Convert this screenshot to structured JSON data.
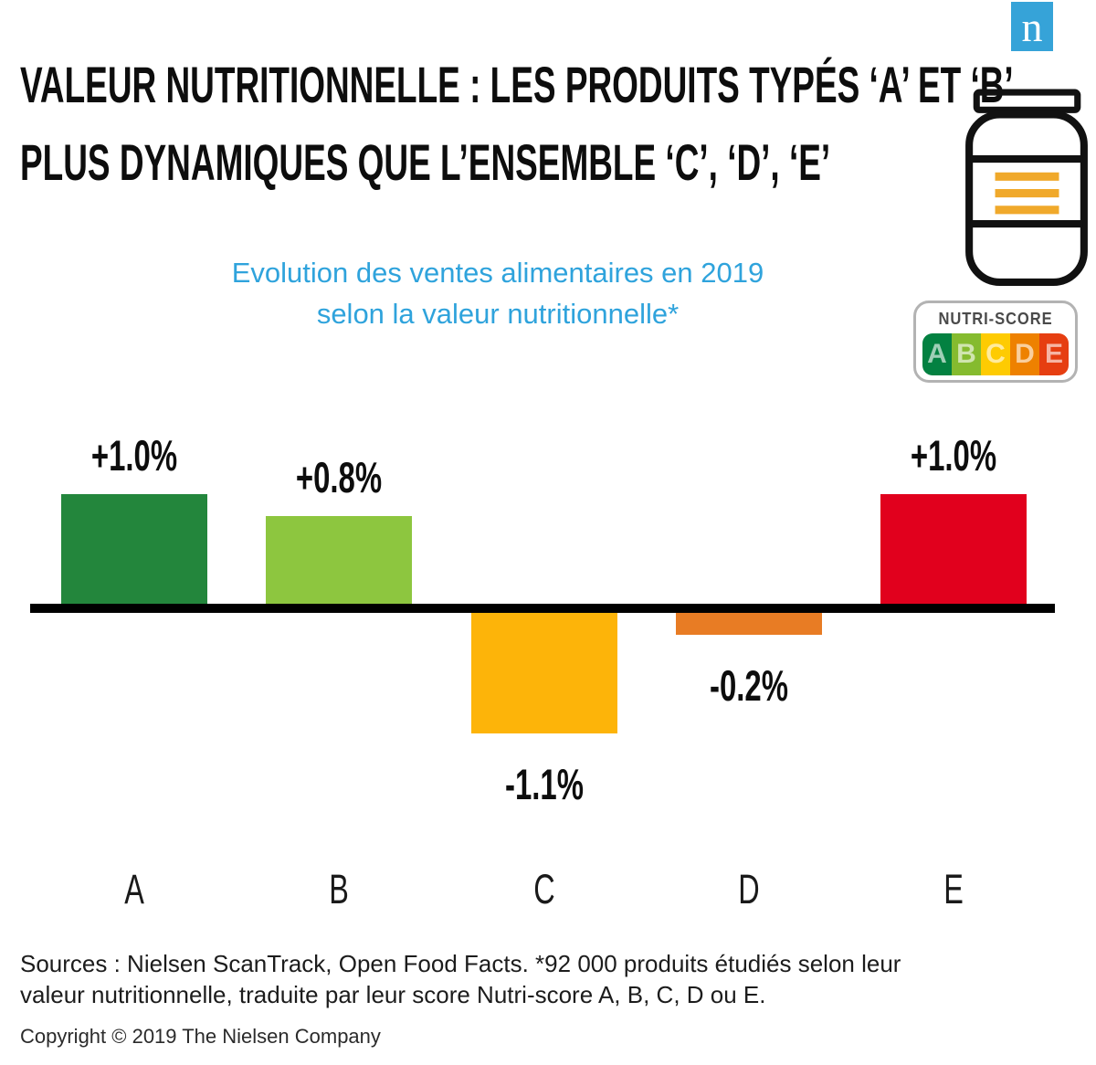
{
  "header": {
    "title_line1": "VALEUR NUTRITIONNELLE : LES PRODUITS TYPÉS ‘A’ ET ‘B’",
    "title_line2": "PLUS DYNAMIQUES QUE L’ENSEMBLE ‘C’, ‘D’, ‘E’"
  },
  "logo": {
    "letter": "n",
    "color": "#36a3d8"
  },
  "subtitle": {
    "line1": "Evolution des ventes alimentaires en 2019",
    "line2": "selon la valeur nutritionnelle*",
    "color": "#2fa3dc"
  },
  "nutriscore": {
    "label": "NUTRI-SCORE",
    "segments": [
      {
        "letter": "A",
        "color": "#038141"
      },
      {
        "letter": "B",
        "color": "#85bb2f"
      },
      {
        "letter": "C",
        "color": "#fecb02"
      },
      {
        "letter": "D",
        "color": "#ee8100"
      },
      {
        "letter": "E",
        "color": "#e63e11"
      }
    ]
  },
  "chart_data": {
    "type": "bar",
    "title": "Evolution des ventes alimentaires en 2019 selon la valeur nutritionnelle*",
    "categories": [
      "A",
      "B",
      "C",
      "D",
      "E"
    ],
    "values": [
      1.0,
      0.8,
      -1.1,
      -0.2,
      1.0
    ],
    "value_labels": [
      "+1.0%",
      "+0.8%",
      "-1.1%",
      "-0.2%",
      "+1.0%"
    ],
    "colors": [
      "#23863c",
      "#8dc63f",
      "#fdb409",
      "#e87c24",
      "#e1001d"
    ],
    "unit": "%",
    "baseline": 0,
    "baseline_color": "#000000",
    "ylim": [
      -1.5,
      1.5
    ],
    "grid": false,
    "legend": false
  },
  "footer": {
    "sources": "Sources : Nielsen ScanTrack, Open Food Facts. *92 000 produits étudiés selon leur valeur nutritionnelle, traduite par leur score Nutri-score A, B, C, D ou E.",
    "copyright": "Copyright © 2019 The Nielsen Company"
  }
}
